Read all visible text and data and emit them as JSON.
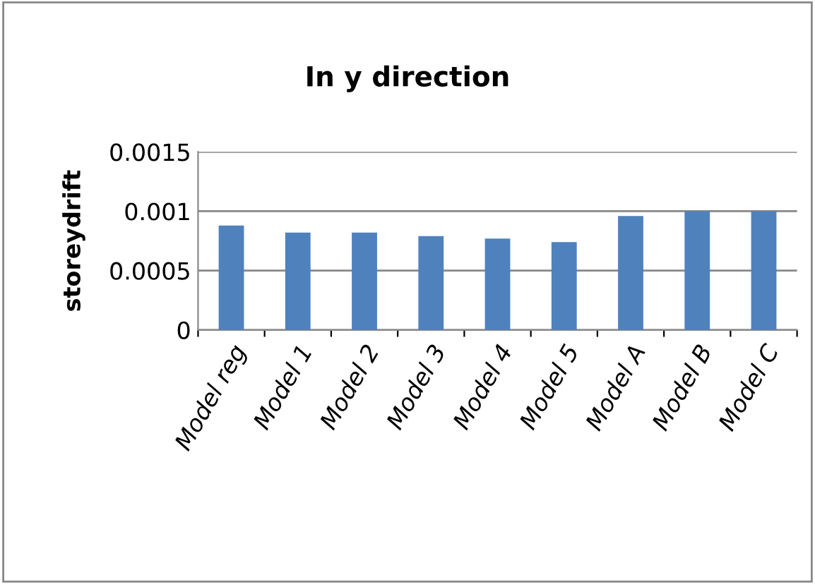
{
  "chart_data": {
    "type": "bar",
    "title": "In y direction",
    "ylabel": "storeydrift",
    "categories": [
      "Model reg",
      "Model 1",
      "Model 2",
      "Model 3",
      "Model 4",
      "Model 5",
      "Model A",
      "Model B",
      "Model C"
    ],
    "values": [
      0.00088,
      0.00082,
      0.00082,
      0.00079,
      0.00077,
      0.00074,
      0.00096,
      0.001,
      0.001
    ],
    "color": "#4f81bd",
    "ylim": [
      0,
      0.0015
    ],
    "yticks": [
      0,
      0.0005,
      0.001,
      0.0015
    ],
    "grid": "y",
    "legend": false
  }
}
